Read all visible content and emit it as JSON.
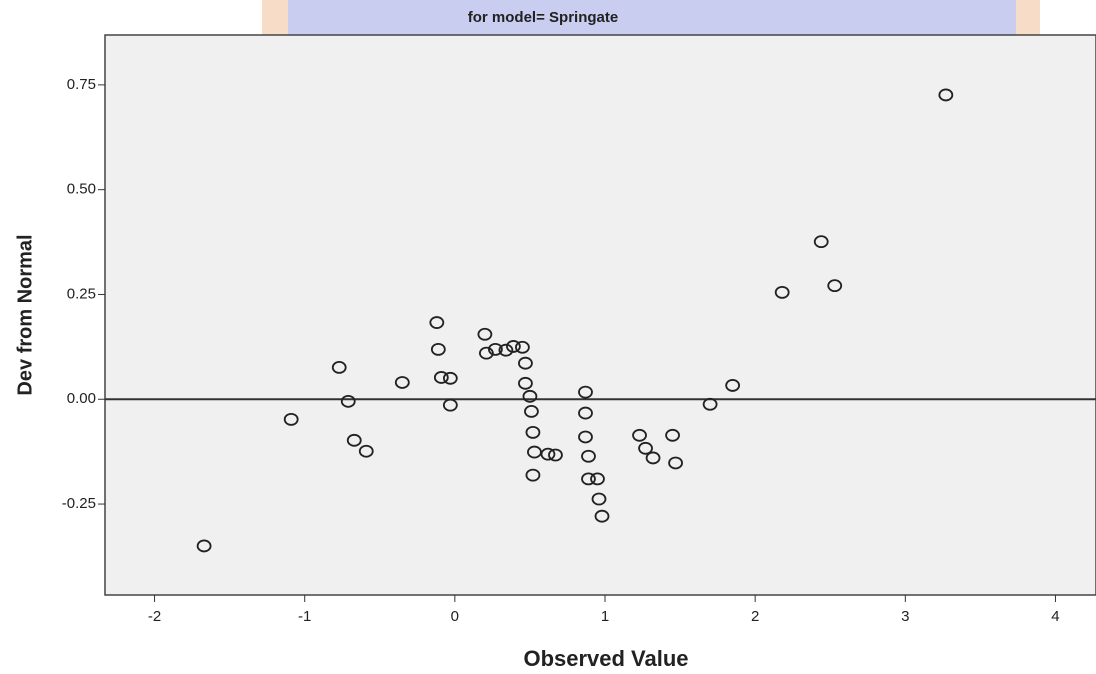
{
  "chart_data": {
    "type": "scatter",
    "title": "for model= Springate",
    "x_label": "Observed Value",
    "y_label": "Dev from Normal",
    "xlim": [
      -2.33,
      4.27
    ],
    "ylim": [
      -0.467,
      0.869
    ],
    "xticks": [
      -2,
      -1,
      0,
      1,
      2,
      3,
      4
    ],
    "yticks": [
      0.75,
      {
        "value": 0.5,
        "label": "0.50"
      },
      0.25,
      {
        "value": 0,
        "label": "0.00"
      },
      -0.25
    ],
    "reference_line": 0,
    "color": "#222222",
    "x": [
      3.27,
      2.44,
      2.53,
      2.18,
      1.85,
      1.7,
      1.45,
      1.47,
      1.23,
      1.27,
      1.32,
      0.87,
      0.87,
      0.87,
      0.89,
      0.89,
      0.95,
      0.96,
      0.98,
      0.62,
      0.67,
      0.53,
      0.52,
      0.52,
      0.51,
      0.5,
      0.47,
      0.47,
      0.45,
      0.39,
      0.34,
      0.27,
      0.21,
      0.2,
      -0.12,
      -0.11,
      -0.09,
      -0.03,
      -0.03,
      -0.35,
      -0.77,
      -0.71,
      -0.67,
      -0.59,
      -1.09,
      -1.67
    ],
    "values": [
      0.726,
      0.376,
      0.271,
      0.255,
      0.033,
      -0.012,
      -0.086,
      -0.152,
      -0.086,
      -0.117,
      -0.14,
      0.017,
      -0.033,
      -0.09,
      -0.136,
      -0.19,
      -0.19,
      -0.238,
      -0.279,
      -0.131,
      -0.133,
      -0.126,
      -0.181,
      -0.079,
      -0.029,
      0.007,
      0.038,
      0.086,
      0.124,
      0.126,
      0.117,
      0.119,
      0.11,
      0.155,
      0.183,
      0.119,
      0.052,
      0.05,
      -0.014,
      0.04,
      0.076,
      -0.005,
      -0.098,
      -0.124,
      -0.048,
      -0.35
    ]
  }
}
